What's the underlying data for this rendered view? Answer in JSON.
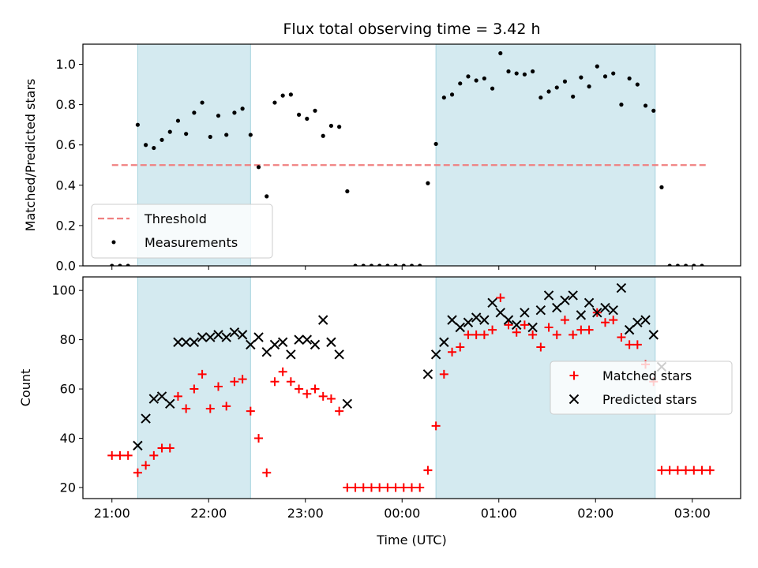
{
  "chart_data": [
    {
      "type": "scatter",
      "title": "Flux total observing time = 3.42 h",
      "ylabel": "Matched/Predicted stars",
      "xlabel": "",
      "xlim": [
        "20:42",
        "03:30"
      ],
      "ylim": [
        0,
        1.1
      ],
      "yticks": [
        0.0,
        0.2,
        0.4,
        0.6,
        0.8,
        1.0
      ],
      "ytick_labels": [
        "0.0",
        "0.2",
        "0.4",
        "0.6",
        "0.8",
        "1.0"
      ],
      "shaded_intervals": [
        [
          "21:16",
          "22:26"
        ],
        [
          "00:21",
          "02:37"
        ]
      ],
      "shade_color": "#d4eaf0",
      "legend_position": "lower-left",
      "series": [
        {
          "name": "Threshold",
          "kind": "dashed-line",
          "color": "#f08080",
          "x": [
            "21:00",
            "03:10"
          ],
          "y": [
            0.5,
            0.5
          ]
        },
        {
          "name": "Measurements",
          "kind": "dots",
          "color": "#000000",
          "x": [
            "21:00",
            "21:05",
            "21:10",
            "21:16",
            "21:21",
            "21:26",
            "21:31",
            "21:36",
            "21:41",
            "21:46",
            "21:51",
            "21:56",
            "22:01",
            "22:06",
            "22:11",
            "22:16",
            "22:21",
            "22:26",
            "22:31",
            "22:36",
            "22:41",
            "22:46",
            "22:51",
            "22:56",
            "23:01",
            "23:06",
            "23:11",
            "23:16",
            "23:21",
            "23:26",
            "23:31",
            "23:36",
            "23:41",
            "23:46",
            "23:51",
            "23:56",
            "00:01",
            "00:06",
            "00:11",
            "00:16",
            "00:21",
            "00:26",
            "00:31",
            "00:36",
            "00:41",
            "00:46",
            "00:51",
            "00:56",
            "01:01",
            "01:06",
            "01:11",
            "01:16",
            "01:21",
            "01:26",
            "01:31",
            "01:36",
            "01:41",
            "01:46",
            "01:51",
            "01:56",
            "02:01",
            "02:06",
            "02:11",
            "02:16",
            "02:21",
            "02:26",
            "02:31",
            "02:36",
            "02:41",
            "02:46",
            "02:51",
            "02:56",
            "03:01",
            "03:06"
          ],
          "y": [
            0,
            0,
            0,
            0.7,
            0.6,
            0.585,
            0.625,
            0.665,
            0.72,
            0.655,
            0.76,
            0.81,
            0.64,
            0.745,
            0.65,
            0.76,
            0.78,
            0.65,
            0.49,
            0.345,
            0.81,
            0.845,
            0.85,
            0.75,
            0.73,
            0.77,
            0.645,
            0.695,
            0.69,
            0.37,
            0,
            0,
            0,
            0,
            0,
            0,
            0,
            0,
            0,
            0.41,
            0.605,
            0.835,
            0.85,
            0.905,
            0.94,
            0.92,
            0.93,
            0.88,
            1.055,
            0.965,
            0.955,
            0.95,
            0.965,
            0.835,
            0.865,
            0.885,
            0.915,
            0.84,
            0.935,
            0.89,
            0.99,
            0.94,
            0.955,
            0.8,
            0.93,
            0.9,
            0.795,
            0.77,
            0.39,
            0,
            0,
            0,
            0,
            0
          ]
        }
      ]
    },
    {
      "type": "scatter",
      "title": "",
      "xlabel": "Time (UTC)",
      "ylabel": "Count",
      "xlim": [
        "20:42",
        "03:30"
      ],
      "ylim": [
        15.5,
        105.5
      ],
      "yticks": [
        20,
        40,
        60,
        80,
        100
      ],
      "ytick_labels": [
        "20",
        "40",
        "60",
        "80",
        "100"
      ],
      "xticks": [
        "21:00",
        "22:00",
        "23:00",
        "00:00",
        "01:00",
        "02:00",
        "03:00"
      ],
      "xtick_labels": [
        "21:00",
        "22:00",
        "23:00",
        "00:00",
        "01:00",
        "02:00",
        "03:00"
      ],
      "shaded_intervals": [
        [
          "21:16",
          "22:26"
        ],
        [
          "00:21",
          "02:37"
        ]
      ],
      "shade_color": "#d4eaf0",
      "legend_position": "center-right",
      "series": [
        {
          "name": "Matched stars",
          "marker": "plus",
          "color": "#ff0000",
          "x": [
            "21:00",
            "21:05",
            "21:10",
            "21:16",
            "21:21",
            "21:26",
            "21:31",
            "21:36",
            "21:41",
            "21:46",
            "21:51",
            "21:56",
            "22:01",
            "22:06",
            "22:11",
            "22:16",
            "22:21",
            "22:26",
            "22:31",
            "22:36",
            "22:41",
            "22:46",
            "22:51",
            "22:56",
            "23:01",
            "23:06",
            "23:11",
            "23:16",
            "23:21",
            "23:26",
            "23:31",
            "23:36",
            "23:41",
            "23:46",
            "23:51",
            "23:56",
            "00:01",
            "00:06",
            "00:11",
            "00:16",
            "00:21",
            "00:26",
            "00:31",
            "00:36",
            "00:41",
            "00:46",
            "00:51",
            "00:56",
            "01:01",
            "01:06",
            "01:11",
            "01:16",
            "01:21",
            "01:26",
            "01:31",
            "01:36",
            "01:41",
            "01:46",
            "01:51",
            "01:56",
            "02:01",
            "02:06",
            "02:11",
            "02:16",
            "02:21",
            "02:26",
            "02:31",
            "02:36",
            "02:41",
            "02:46",
            "02:51",
            "02:56",
            "03:01",
            "03:06",
            "03:11"
          ],
          "y": [
            33,
            33,
            33,
            26,
            29,
            33,
            36,
            36,
            57,
            52,
            60,
            66,
            52,
            61,
            53,
            63,
            64,
            51,
            40,
            26,
            63,
            67,
            63,
            60,
            58,
            60,
            57,
            56,
            51,
            20,
            20,
            20,
            20,
            20,
            20,
            20,
            20,
            20,
            20,
            27,
            45,
            66,
            75,
            77,
            82,
            82,
            82,
            84,
            97,
            86,
            83,
            86,
            82,
            77,
            85,
            82,
            88,
            82,
            84,
            84,
            91,
            87,
            88,
            81,
            78,
            78,
            70,
            63,
            27,
            27,
            27,
            27,
            27,
            27,
            27
          ]
        },
        {
          "name": "Predicted stars",
          "marker": "x",
          "color": "#000000",
          "x": [
            "21:16",
            "21:21",
            "21:26",
            "21:31",
            "21:36",
            "21:41",
            "21:46",
            "21:51",
            "21:56",
            "22:01",
            "22:06",
            "22:11",
            "22:16",
            "22:21",
            "22:26",
            "22:31",
            "22:36",
            "22:41",
            "22:46",
            "22:51",
            "22:56",
            "23:01",
            "23:06",
            "23:11",
            "23:16",
            "23:21",
            "23:26",
            "00:16",
            "00:21",
            "00:26",
            "00:31",
            "00:36",
            "00:41",
            "00:46",
            "00:51",
            "00:56",
            "01:01",
            "01:06",
            "01:11",
            "01:16",
            "01:21",
            "01:26",
            "01:31",
            "01:36",
            "01:41",
            "01:46",
            "01:51",
            "01:56",
            "02:01",
            "02:06",
            "02:11",
            "02:16",
            "02:21",
            "02:26",
            "02:31",
            "02:36",
            "02:41"
          ],
          "y": [
            37,
            48,
            56,
            57,
            54,
            79,
            79,
            79,
            81,
            81,
            82,
            81,
            83,
            82,
            78,
            81,
            75,
            78,
            79,
            74,
            80,
            80,
            78,
            88,
            79,
            74,
            54,
            66,
            74,
            79,
            88,
            85,
            87,
            89,
            88,
            95,
            91,
            88,
            86,
            91,
            85,
            92,
            98,
            93,
            96,
            98,
            90,
            95,
            91,
            93,
            92,
            101,
            84,
            87,
            88,
            82,
            69
          ]
        }
      ]
    }
  ]
}
